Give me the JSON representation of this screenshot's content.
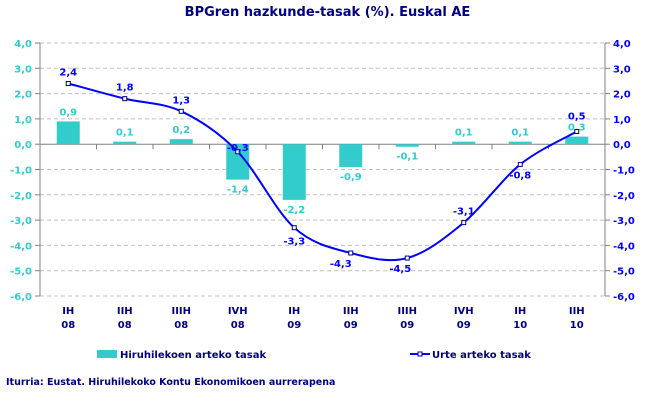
{
  "chart_data": {
    "type": "bar+line",
    "title": "BPGren hazkunde-tasak (%). Euskal AE",
    "categories": [
      [
        "IH",
        "08"
      ],
      [
        "IIH",
        "08"
      ],
      [
        "IIIH",
        "08"
      ],
      [
        "IVH",
        "08"
      ],
      [
        "IH",
        "09"
      ],
      [
        "IIH",
        "09"
      ],
      [
        "IIIH",
        "09"
      ],
      [
        "IVH",
        "09"
      ],
      [
        "IH",
        "10"
      ],
      [
        "IIH",
        "10"
      ]
    ],
    "ylim": [
      -6,
      4
    ],
    "yticks": [
      "4,0",
      "3,0",
      "2,0",
      "1,0",
      "0,0",
      "-1,0",
      "-2,0",
      "-3,0",
      "-4,0",
      "-5,0",
      "-6,0"
    ],
    "grid": true,
    "legend_position": "bottom",
    "series": [
      {
        "name": "Hiruhilekoen arteko tasak",
        "kind": "bar",
        "axis": "left",
        "color": "#33CCCC",
        "values": [
          0.9,
          0.1,
          0.2,
          -1.4,
          -2.2,
          -0.9,
          -0.1,
          0.1,
          0.1,
          0.3
        ],
        "labels": [
          "0,9",
          "0,1",
          "0,2",
          "-1,4",
          "-2,2",
          "-0,9",
          "-0,1",
          "0,1",
          "0,1",
          "0,3"
        ]
      },
      {
        "name": "Urte arteko tasak",
        "kind": "line",
        "axis": "right",
        "color": "#0000FF",
        "values": [
          2.4,
          1.8,
          1.3,
          -0.3,
          -3.3,
          -4.3,
          -4.5,
          -3.1,
          -0.8,
          0.5
        ],
        "labels": [
          "2,4",
          "1,8",
          "1,3",
          "-0,3",
          "-3,3",
          "-4,3",
          "-4,5",
          "-3,1",
          "-0,8",
          "0,5"
        ]
      }
    ]
  },
  "source": "Iturria: Eustat. Hiruhilekoko Kontu Ekonomikoen aurrerapena",
  "colors": {
    "left_axis": "#33CCCC",
    "right_axis": "#0000FF",
    "text": "#000080"
  }
}
